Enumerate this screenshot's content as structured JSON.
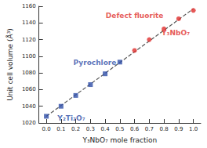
{
  "chart_data": {
    "type": "scatter",
    "x_label": "Y₃NbO₇ mole fraction",
    "y_label": "Unit cell volume (Å³)",
    "xlim": [
      -0.05,
      1.05
    ],
    "xticks": [
      {
        "value": 0,
        "label": "0.0"
      },
      {
        "value": 0.1,
        "label": "0.1"
      },
      {
        "value": 0.2,
        "label": "0.2"
      },
      {
        "value": 0.3,
        "label": "0.3"
      },
      {
        "value": 0.4,
        "label": "0.4"
      },
      {
        "value": 0.5,
        "label": "0.5"
      },
      {
        "value": 0.6,
        "label": "0.6"
      },
      {
        "value": 0.7,
        "label": "0.7"
      },
      {
        "value": 0.8,
        "label": "0.8"
      },
      {
        "value": 0.9,
        "label": "0.9"
      },
      {
        "value": 1,
        "label": "1.0"
      }
    ],
    "ylim": [
      1020,
      1160
    ],
    "yticks": [
      1020,
      1040,
      1060,
      1080,
      1100,
      1120,
      1140,
      1160
    ],
    "grid": false,
    "series": [
      {
        "type": "scatter",
        "color": "#2f4fa8",
        "marker": "square",
        "x": [
          0,
          0.1,
          0.2,
          0.3,
          0.4,
          0.5
        ],
        "values": [
          1028,
          1040,
          1053,
          1066,
          1079,
          1093
        ]
      },
      {
        "type": "scatter",
        "color": "#e0302e",
        "marker": "circle",
        "x": [
          0.6,
          0.7,
          0.8,
          0.9,
          1
        ],
        "values": [
          1107,
          1120,
          1133,
          1145,
          1155
        ]
      },
      {
        "type": "line",
        "color": "#555555",
        "line_style": "dashed",
        "x": [
          0,
          1
        ],
        "values": [
          1028,
          1157
        ]
      }
    ],
    "annotations": [
      {
        "text": "Y₂Ti₂O₇",
        "x": 0.17,
        "y": 1026,
        "color": "#2f4fa8"
      },
      {
        "text": "Pyrochlore",
        "x": 0.33,
        "y": 1092,
        "color": "#2f4fa8"
      },
      {
        "text": "Defect fluorite",
        "x": 0.6,
        "y": 1149,
        "color": "#e0302e"
      },
      {
        "text": "Y₃NbO₇",
        "x": 0.88,
        "y": 1128,
        "color": "#e0302e"
      }
    ]
  }
}
